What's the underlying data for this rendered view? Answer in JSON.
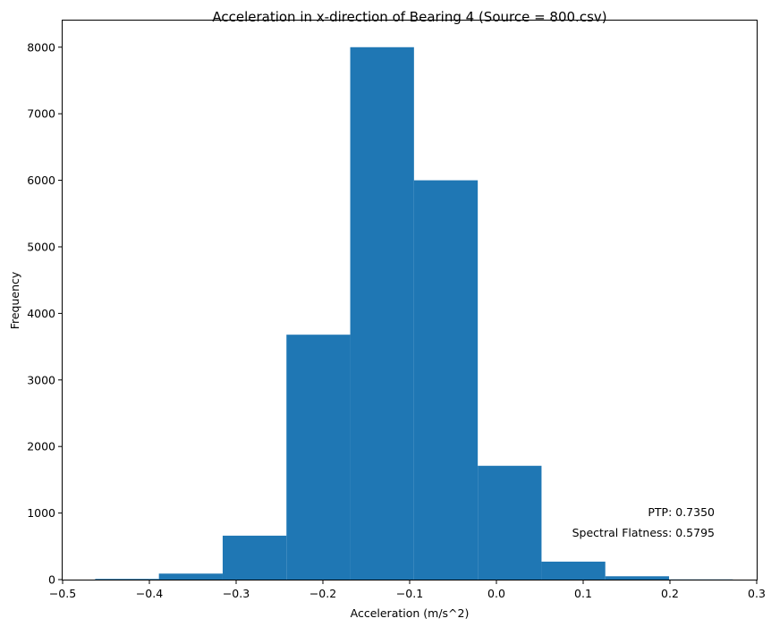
{
  "chart_data": {
    "type": "histogram",
    "title": "Acceleration in x-direction of Bearing 4 (Source = 800.csv)",
    "xlabel": "Acceleration (m/s^2)",
    "ylabel": "Frequency",
    "xlim": [
      -0.5,
      0.3
    ],
    "ylim": [
      0,
      8400
    ],
    "xticks": [
      -0.5,
      -0.4,
      -0.3,
      -0.2,
      -0.1,
      0.0,
      0.1,
      0.2,
      0.3
    ],
    "xtick_labels": [
      "−0.5",
      "−0.4",
      "−0.3",
      "−0.2",
      "−0.1",
      "0.0",
      "0.1",
      "0.2",
      "0.3"
    ],
    "yticks": [
      0,
      1000,
      2000,
      3000,
      4000,
      5000,
      6000,
      7000,
      8000
    ],
    "yticks_labels": [
      "0",
      "1000",
      "2000",
      "3000",
      "4000",
      "5000",
      "6000",
      "7000",
      "8000"
    ],
    "bar_color": "#1f77b4",
    "bins": [
      {
        "x0": -0.4625,
        "x1": -0.389,
        "count": 10
      },
      {
        "x0": -0.389,
        "x1": -0.3155,
        "count": 90
      },
      {
        "x0": -0.3155,
        "x1": -0.242,
        "count": 660
      },
      {
        "x0": -0.242,
        "x1": -0.1685,
        "count": 3680
      },
      {
        "x0": -0.1685,
        "x1": -0.095,
        "count": 8000
      },
      {
        "x0": -0.095,
        "x1": -0.0215,
        "count": 6000
      },
      {
        "x0": -0.0215,
        "x1": 0.052,
        "count": 1710
      },
      {
        "x0": 0.052,
        "x1": 0.1255,
        "count": 270
      },
      {
        "x0": 0.1255,
        "x1": 0.199,
        "count": 50
      },
      {
        "x0": 0.199,
        "x1": 0.2725,
        "count": 3
      }
    ],
    "annotations": [
      "PTP: 0.7350",
      "Spectral Flatness: 0.5795"
    ],
    "grid": false,
    "legend": false
  }
}
